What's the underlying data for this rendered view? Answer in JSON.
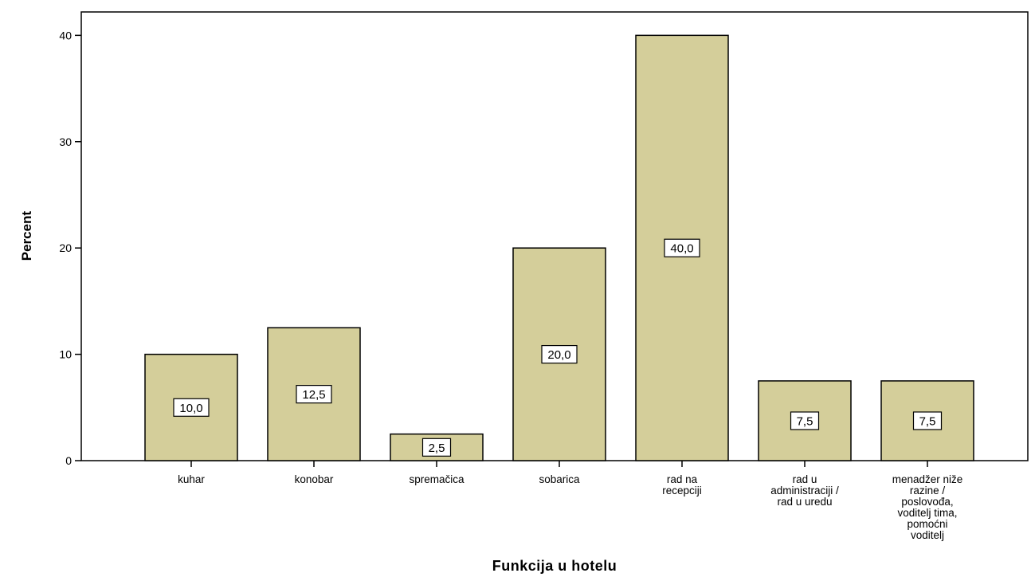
{
  "chart_data": {
    "type": "bar",
    "categories": [
      [
        "kuhar"
      ],
      [
        "konobar"
      ],
      [
        "spremačica"
      ],
      [
        "sobarica"
      ],
      [
        "rad na",
        "recepciji"
      ],
      [
        "rad u",
        "administraciji /",
        "rad u uredu"
      ],
      [
        "menadžer niže",
        "razine /",
        "poslovođa,",
        "voditelj tima,",
        "pomoćni",
        "voditelj"
      ]
    ],
    "values": [
      10.0,
      12.5,
      2.5,
      20.0,
      40.0,
      7.5,
      7.5
    ],
    "data_labels": [
      "10,0",
      "12,5",
      "2,5",
      "20,0",
      "40,0",
      "7,5",
      "7,5"
    ],
    "xlabel": "Funkcija u hotelu",
    "ylabel": "Percent",
    "ylim": [
      0,
      42.2
    ],
    "yticks": [
      0,
      10,
      20,
      30,
      40
    ],
    "grid": false,
    "bar_color": "#d4ce9a",
    "bar_edge_color": "#000000"
  }
}
